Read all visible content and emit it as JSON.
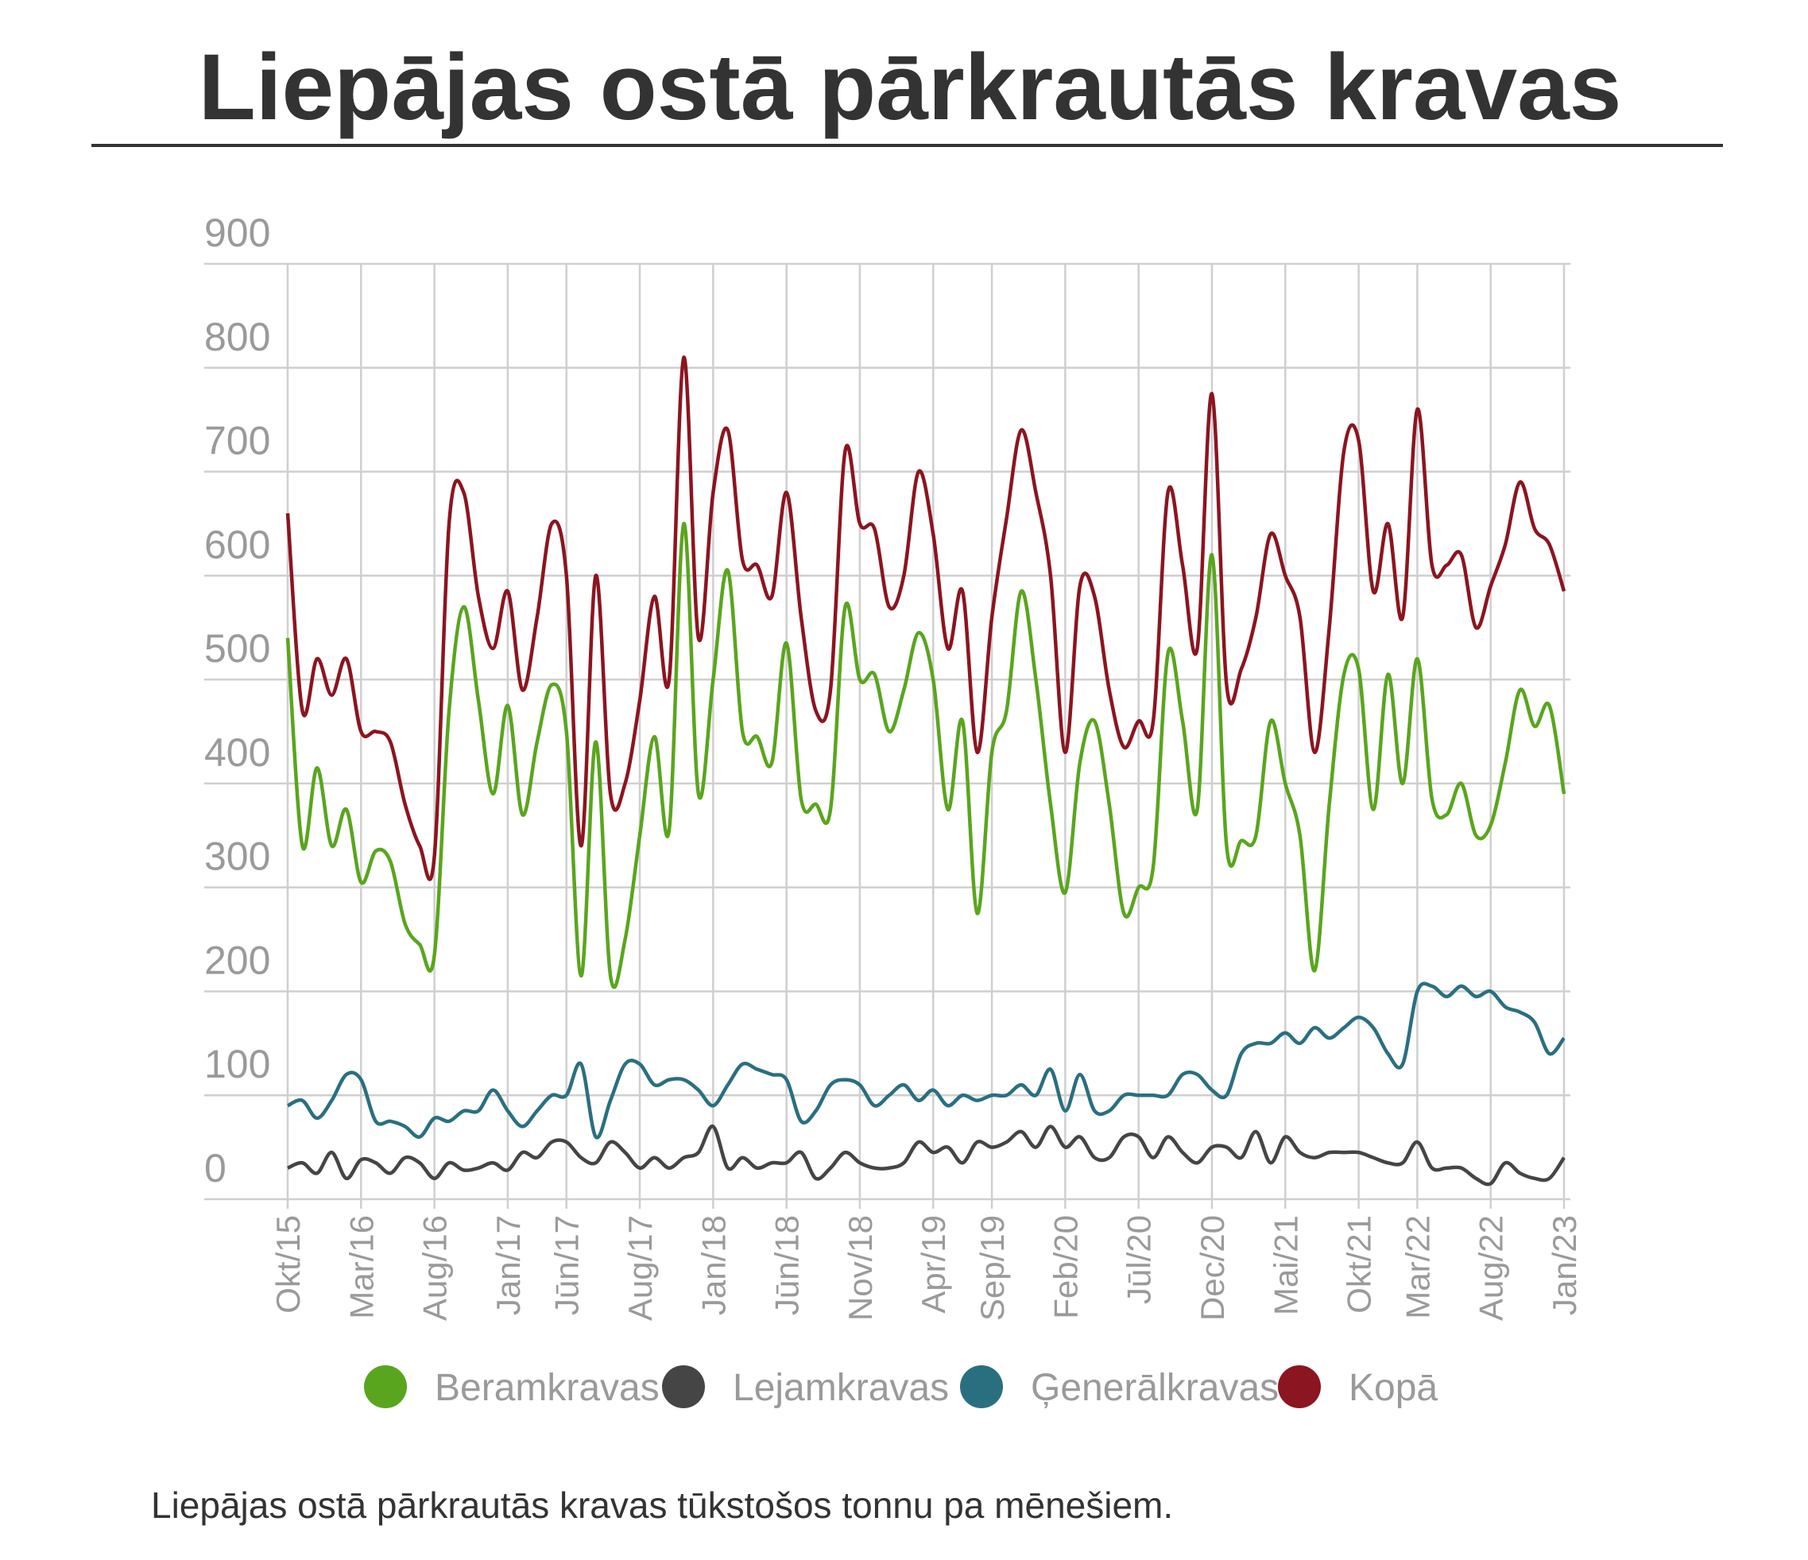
{
  "chart_data": {
    "type": "line",
    "title": "Liepājas ostā pārkrautās kravas",
    "caption": "Liepājas ostā pārkrautās kravas tūkstošos tonnu pa mēnešiem.",
    "categories": [
      "Okt/15",
      null,
      null,
      null,
      null,
      "Mar/16",
      null,
      null,
      null,
      null,
      "Aug/16",
      null,
      null,
      null,
      null,
      "Jan/17",
      null,
      null,
      null,
      "Jūn/17",
      null,
      null,
      null,
      null,
      "Aug/17",
      null,
      null,
      null,
      null,
      "Jan/18",
      null,
      null,
      null,
      null,
      "Jūn/18",
      null,
      null,
      null,
      null,
      "Nov/18",
      null,
      null,
      null,
      null,
      "Apr/19",
      null,
      null,
      null,
      "Sep/19",
      null,
      null,
      null,
      null,
      "Feb/20",
      null,
      null,
      null,
      null,
      "Jūl/20",
      null,
      null,
      null,
      null,
      "Dec/20",
      null,
      null,
      null,
      null,
      "Mai/21",
      null,
      null,
      null,
      null,
      "Okt/21",
      null,
      null,
      null,
      "Mar/22",
      null,
      null,
      null,
      null,
      "Aug/22",
      null,
      null,
      null,
      null,
      "Jan/23"
    ],
    "series": [
      {
        "name": "Beramkravas",
        "color": "#5aa51e",
        "values": [
          540,
          340,
          415,
          340,
          375,
          305,
          335,
          325,
          265,
          245,
          235,
          470,
          570,
          480,
          390,
          475,
          370,
          440,
          495,
          450,
          215,
          440,
          215,
          250,
          350,
          445,
          355,
          650,
          390,
          500,
          605,
          450,
          445,
          420,
          535,
          385,
          380,
          375,
          570,
          500,
          505,
          450,
          490,
          545,
          500,
          375,
          460,
          275,
          430,
          470,
          585,
          500,
          380,
          295,
          420,
          460,
          380,
          275,
          300,
          320,
          525,
          460,
          375,
          620,
          340,
          345,
          350,
          460,
          400,
          350,
          220,
          380,
          505,
          510,
          375,
          505,
          400,
          520,
          385,
          370,
          400,
          350,
          360,
          420,
          490,
          455,
          475,
          390
        ]
      },
      {
        "name": "Lejamkravas",
        "color": "#454545",
        "values": [
          30,
          35,
          25,
          45,
          20,
          38,
          35,
          25,
          40,
          35,
          20,
          35,
          28,
          30,
          35,
          28,
          45,
          40,
          55,
          55,
          40,
          35,
          55,
          45,
          30,
          40,
          30,
          40,
          45,
          70,
          30,
          40,
          30,
          35,
          35,
          45,
          20,
          30,
          45,
          35,
          30,
          30,
          35,
          55,
          45,
          50,
          35,
          55,
          50,
          55,
          65,
          50,
          70,
          50,
          60,
          40,
          40,
          60,
          60,
          40,
          60,
          45,
          35,
          50,
          50,
          40,
          65,
          35,
          60,
          45,
          40,
          45,
          45,
          45,
          40,
          35,
          35,
          55,
          30,
          30,
          30,
          20,
          15,
          35,
          25,
          20,
          20,
          40
        ]
      },
      {
        "name": "Ģenerālkravas",
        "color": "#2a6f80",
        "values": [
          90,
          95,
          78,
          95,
          120,
          115,
          75,
          75,
          70,
          60,
          78,
          75,
          85,
          85,
          105,
          85,
          70,
          85,
          100,
          100,
          130,
          60,
          95,
          130,
          130,
          110,
          115,
          115,
          105,
          90,
          110,
          130,
          125,
          120,
          115,
          75,
          85,
          110,
          115,
          110,
          90,
          100,
          110,
          95,
          105,
          90,
          100,
          95,
          100,
          100,
          110,
          100,
          125,
          85,
          120,
          85,
          85,
          100,
          100,
          100,
          100,
          120,
          120,
          105,
          100,
          140,
          150,
          150,
          160,
          150,
          165,
          155,
          165,
          175,
          165,
          140,
          130,
          200,
          205,
          195,
          205,
          195,
          200,
          185,
          180,
          170,
          140,
          155
        ]
      },
      {
        "name": "Kopā",
        "color": "#8b1520",
        "values": [
          660,
          470,
          520,
          485,
          520,
          450,
          450,
          440,
          380,
          340,
          330,
          650,
          680,
          580,
          530,
          585,
          490,
          560,
          650,
          600,
          340,
          600,
          390,
          400,
          480,
          580,
          500,
          810,
          540,
          680,
          740,
          615,
          610,
          580,
          680,
          560,
          470,
          490,
          720,
          650,
          645,
          570,
          600,
          700,
          640,
          530,
          585,
          430,
          560,
          655,
          740,
          680,
          600,
          430,
          590,
          580,
          490,
          435,
          460,
          460,
          680,
          610,
          530,
          775,
          495,
          510,
          560,
          640,
          600,
          560,
          430,
          550,
          720,
          730,
          585,
          650,
          560,
          760,
          610,
          610,
          620,
          550,
          590,
          630,
          690,
          645,
          630,
          585
        ]
      }
    ],
    "ylim": [
      0,
      900
    ],
    "yticks": [
      0,
      100,
      200,
      300,
      400,
      500,
      600,
      700,
      800,
      900
    ],
    "grid": true
  }
}
